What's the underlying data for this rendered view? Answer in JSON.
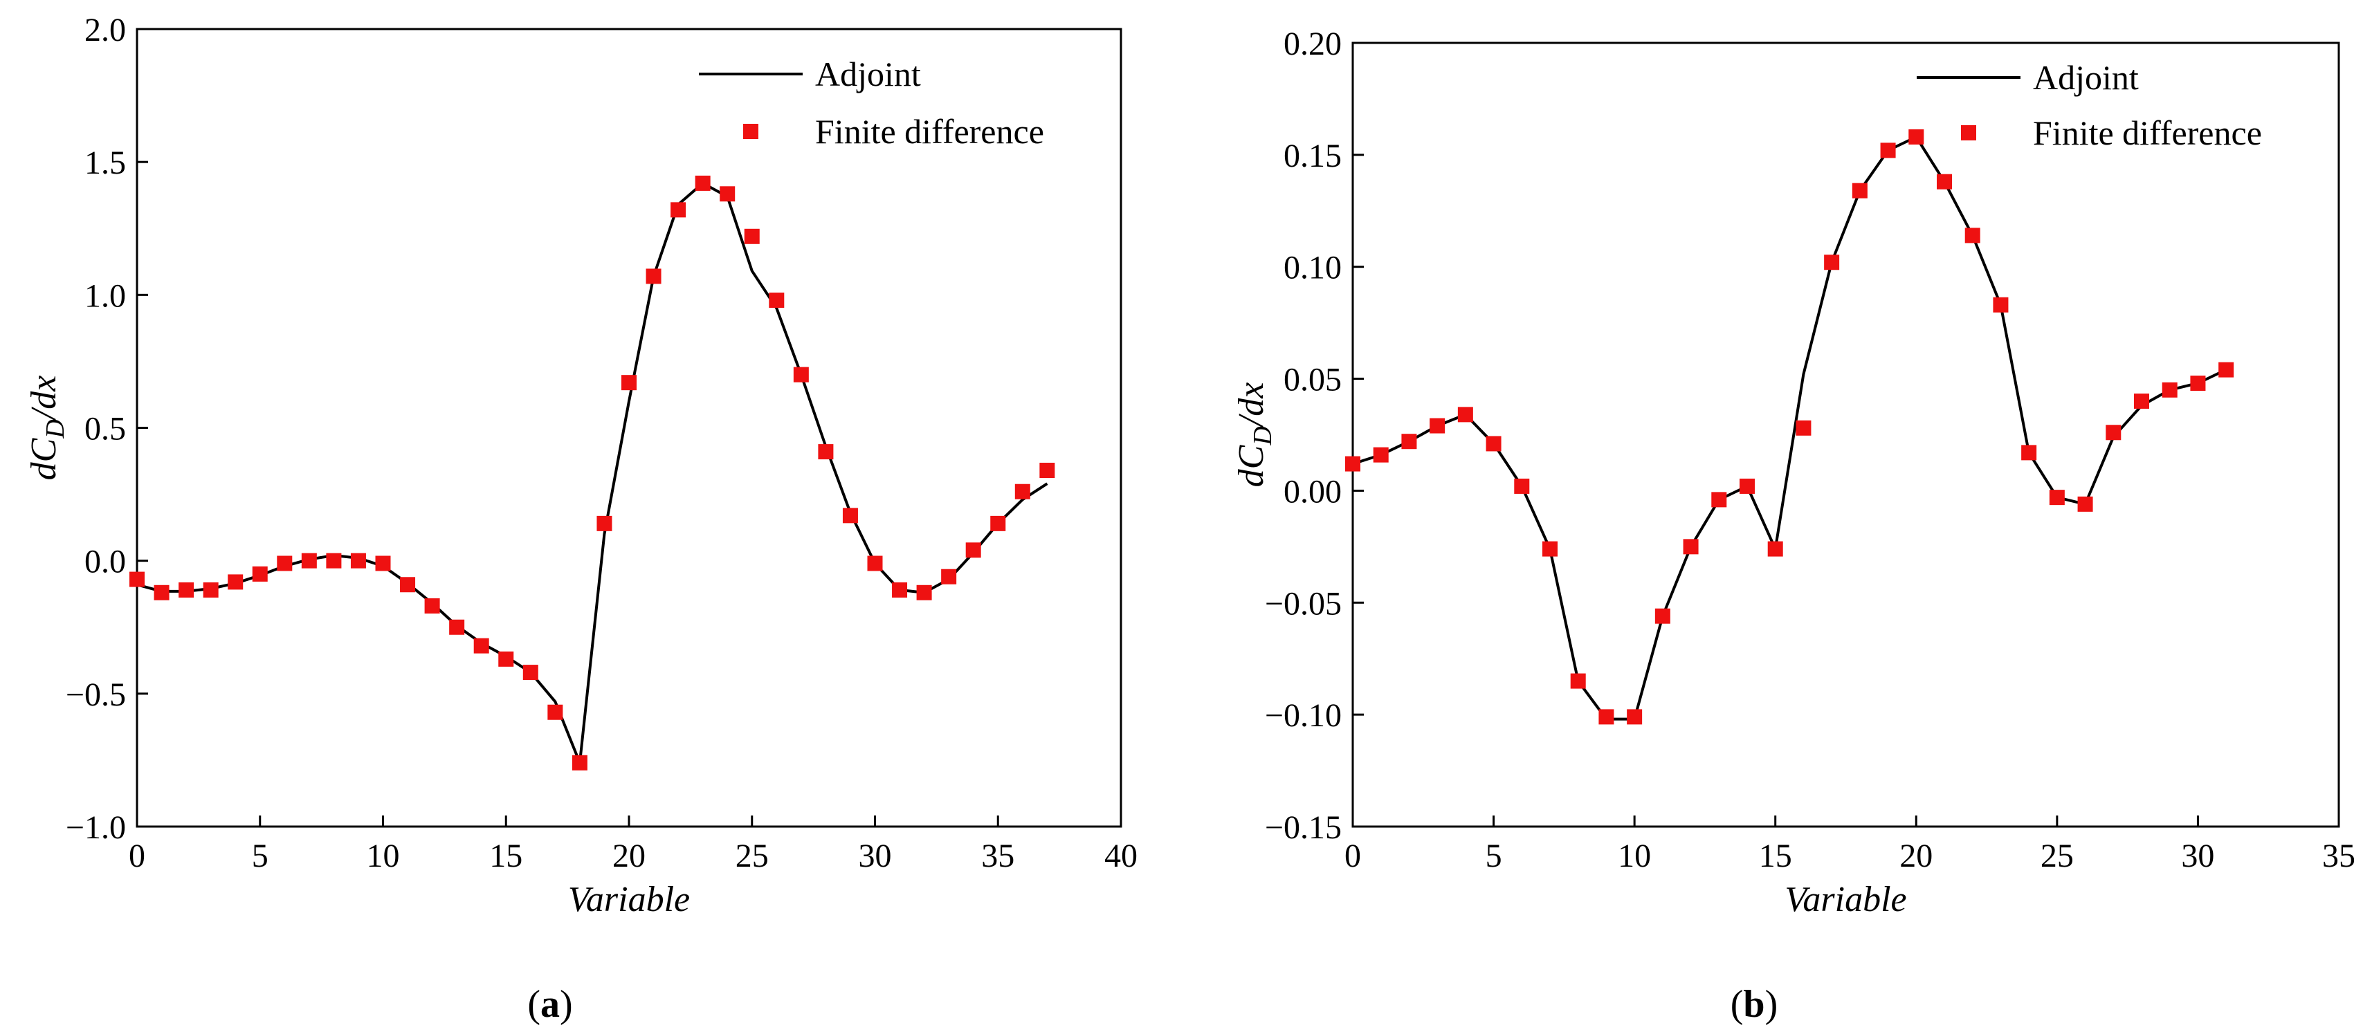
{
  "figure": {
    "captions": [
      {
        "open": "(",
        "letter": "a",
        "close": ")"
      },
      {
        "open": "(",
        "letter": "b",
        "close": ")"
      }
    ]
  },
  "colors": {
    "line": "#000000",
    "marker": "#ee1111",
    "axis": "#000000"
  },
  "chart_data": [
    {
      "type": "line",
      "title": "",
      "xlabel": "Variable",
      "ylabel_parts": {
        "d1": "dC",
        "sub": "D",
        "rest": "/dx"
      },
      "xlim": [
        0,
        40
      ],
      "ylim": [
        -1.0,
        2.0
      ],
      "xticks": [
        0,
        5,
        10,
        15,
        20,
        25,
        30,
        35,
        40
      ],
      "yticks": [
        -1.0,
        -0.5,
        0.0,
        0.5,
        1.0,
        1.5,
        2.0
      ],
      "ytick_labels": [
        "−1.0",
        "−0.5",
        "0.0",
        "0.5",
        "1.0",
        "1.5",
        "2.0"
      ],
      "legend_position": "top-right",
      "grid": false,
      "series": [
        {
          "name": "Adjoint",
          "style": "line",
          "x": [
            0,
            1,
            2,
            3,
            4,
            5,
            6,
            7,
            8,
            9,
            10,
            11,
            12,
            13,
            14,
            15,
            16,
            17,
            18,
            19,
            20,
            21,
            22,
            23,
            24,
            25,
            26,
            27,
            28,
            29,
            30,
            31,
            32,
            33,
            34,
            35,
            36,
            37
          ],
          "values": [
            -0.09,
            -0.115,
            -0.115,
            -0.105,
            -0.085,
            -0.055,
            -0.02,
            0.005,
            0.02,
            0.01,
            -0.02,
            -0.085,
            -0.16,
            -0.245,
            -0.31,
            -0.36,
            -0.42,
            -0.53,
            -0.76,
            0.1,
            0.6,
            1.07,
            1.34,
            1.42,
            1.37,
            1.09,
            0.95,
            0.7,
            0.43,
            0.18,
            -0.01,
            -0.11,
            -0.12,
            -0.07,
            0.03,
            0.14,
            0.23,
            0.29
          ]
        },
        {
          "name": "Finite difference",
          "style": "marker",
          "x": [
            0,
            1,
            2,
            3,
            4,
            5,
            6,
            7,
            8,
            9,
            10,
            11,
            12,
            13,
            14,
            15,
            16,
            17,
            18,
            19,
            20,
            21,
            22,
            23,
            24,
            25,
            26,
            27,
            28,
            29,
            30,
            31,
            32,
            33,
            34,
            35,
            36,
            37
          ],
          "values": [
            -0.07,
            -0.12,
            -0.11,
            -0.11,
            -0.08,
            -0.05,
            -0.01,
            0.0,
            0.0,
            0.0,
            -0.01,
            -0.09,
            -0.17,
            -0.25,
            -0.32,
            -0.37,
            -0.42,
            -0.57,
            -0.76,
            0.14,
            0.67,
            1.07,
            1.32,
            1.42,
            1.38,
            1.22,
            0.98,
            0.7,
            0.41,
            0.17,
            -0.01,
            -0.11,
            -0.12,
            -0.06,
            0.04,
            0.14,
            0.26,
            0.34
          ]
        }
      ]
    },
    {
      "type": "line",
      "title": "",
      "xlabel": "Variable",
      "ylabel_parts": {
        "d1": "dC",
        "sub": "D",
        "rest": "/dx"
      },
      "xlim": [
        0,
        35
      ],
      "ylim": [
        -0.15,
        0.2
      ],
      "xticks": [
        0,
        5,
        10,
        15,
        20,
        25,
        30,
        35
      ],
      "yticks": [
        -0.15,
        -0.1,
        -0.05,
        0.0,
        0.05,
        0.1,
        0.15,
        0.2
      ],
      "ytick_labels": [
        "−0.15",
        "−0.10",
        "−0.05",
        "0.00",
        "0.05",
        "0.10",
        "0.15",
        "0.20"
      ],
      "legend_position": "top-right",
      "grid": false,
      "series": [
        {
          "name": "Adjoint",
          "style": "line",
          "x": [
            0,
            1,
            2,
            3,
            4,
            5,
            6,
            7,
            8,
            9,
            10,
            11,
            12,
            13,
            14,
            15,
            16,
            17,
            18,
            19,
            20,
            21,
            22,
            23,
            24,
            25,
            26,
            27,
            28,
            29,
            30,
            31
          ],
          "values": [
            0.012,
            0.016,
            0.022,
            0.029,
            0.034,
            0.021,
            0.002,
            -0.026,
            -0.085,
            -0.102,
            -0.102,
            -0.056,
            -0.025,
            -0.004,
            0.002,
            -0.026,
            0.052,
            0.102,
            0.134,
            0.152,
            0.158,
            0.138,
            0.114,
            0.083,
            0.017,
            -0.003,
            -0.006,
            0.024,
            0.038,
            0.045,
            0.048,
            0.054
          ]
        },
        {
          "name": "Finite difference",
          "style": "marker",
          "x": [
            0,
            1,
            2,
            3,
            4,
            5,
            6,
            7,
            8,
            9,
            10,
            11,
            12,
            13,
            14,
            15,
            16,
            17,
            18,
            19,
            20,
            21,
            22,
            23,
            24,
            25,
            26,
            27,
            28,
            29,
            30,
            31
          ],
          "values": [
            0.012,
            0.016,
            0.022,
            0.029,
            0.034,
            0.021,
            0.002,
            -0.026,
            -0.085,
            -0.101,
            -0.101,
            -0.056,
            -0.025,
            -0.004,
            0.002,
            -0.026,
            0.028,
            0.102,
            0.134,
            0.152,
            0.158,
            0.138,
            0.114,
            0.083,
            0.017,
            -0.003,
            -0.006,
            0.026,
            0.04,
            0.045,
            0.048,
            0.054
          ]
        }
      ]
    }
  ]
}
